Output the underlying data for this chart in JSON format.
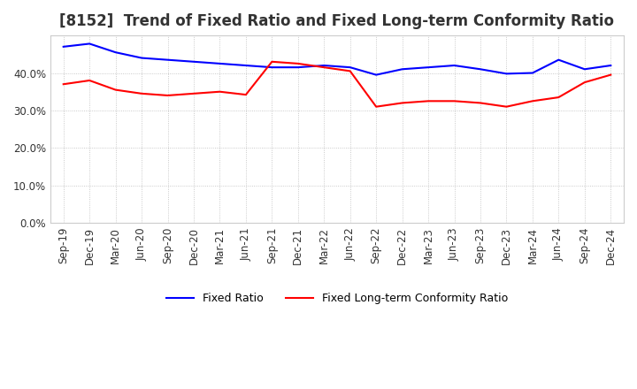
{
  "title": "[8152]  Trend of Fixed Ratio and Fixed Long-term Conformity Ratio",
  "legend_labels": [
    "Fixed Ratio",
    "Fixed Long-term Conformity Ratio"
  ],
  "line_colors": [
    "#0000FF",
    "#FF0000"
  ],
  "x_labels": [
    "Sep-19",
    "Dec-19",
    "Mar-20",
    "Jun-20",
    "Sep-20",
    "Dec-20",
    "Mar-21",
    "Jun-21",
    "Sep-21",
    "Dec-21",
    "Mar-22",
    "Jun-22",
    "Sep-22",
    "Dec-22",
    "Mar-23",
    "Jun-23",
    "Sep-23",
    "Dec-23",
    "Mar-24",
    "Jun-24",
    "Sep-24",
    "Dec-24"
  ],
  "fixed_ratio": [
    47.0,
    47.8,
    45.5,
    44.0,
    43.5,
    43.0,
    42.5,
    42.0,
    41.5,
    41.5,
    42.0,
    41.5,
    39.5,
    41.0,
    41.5,
    42.0,
    41.0,
    39.8,
    40.0,
    43.5,
    41.0,
    42.0
  ],
  "fixed_lt_ratio": [
    37.0,
    38.0,
    35.5,
    34.5,
    34.0,
    34.5,
    35.0,
    34.2,
    43.0,
    42.5,
    41.5,
    40.5,
    31.0,
    32.0,
    32.5,
    32.5,
    32.0,
    31.0,
    32.5,
    33.5,
    37.5,
    39.5
  ],
  "ylim": [
    0.0,
    50.0
  ],
  "yticks": [
    0.0,
    10.0,
    20.0,
    30.0,
    40.0
  ],
  "background_color": "#FFFFFF",
  "plot_bg_color": "#FFFFFF",
  "grid_color": "#AAAAAA",
  "title_fontsize": 12,
  "label_fontsize": 9,
  "tick_fontsize": 8.5
}
